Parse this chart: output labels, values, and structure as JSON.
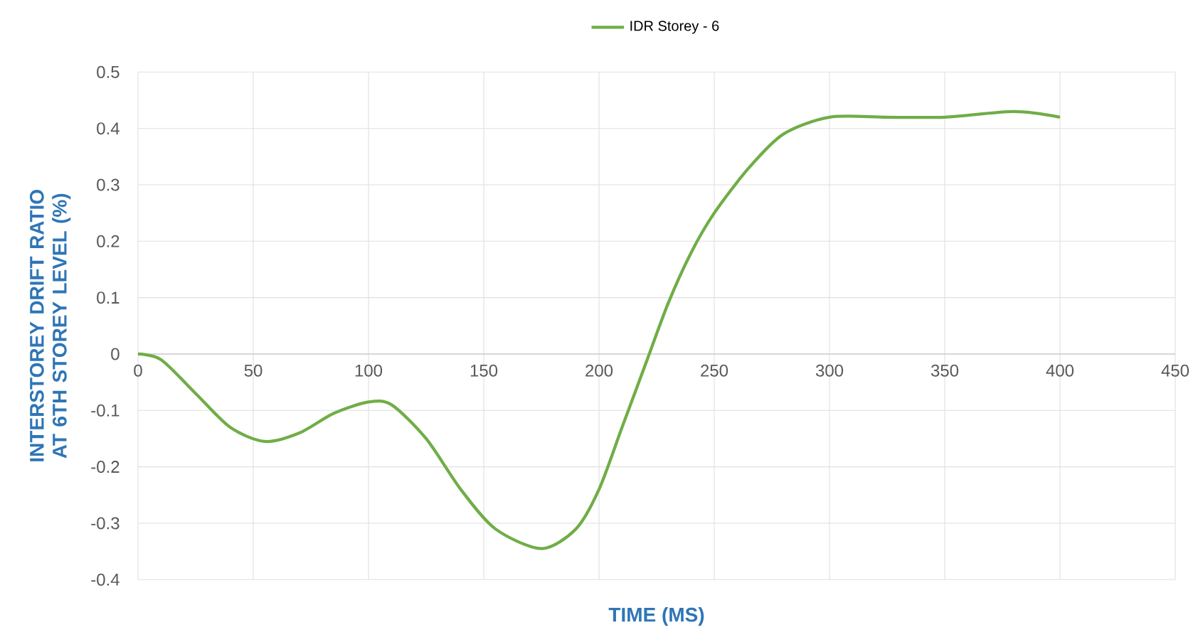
{
  "chart_data": {
    "type": "line",
    "xlabel": "TIME (MS)",
    "ylabel": "INTERSTOREY DRIFT RATIO AT 6TH STOREY LEVEL (%)",
    "x": [
      0,
      10,
      25,
      40,
      55,
      70,
      85,
      100,
      110,
      125,
      140,
      155,
      175,
      190,
      200,
      210,
      220,
      230,
      240,
      250,
      265,
      280,
      300,
      325,
      350,
      380,
      400
    ],
    "series": [
      {
        "name": "IDR Storey - 6",
        "color": "#70ad47",
        "values": [
          0,
          -0.01,
          -0.07,
          -0.13,
          -0.155,
          -0.14,
          -0.105,
          -0.085,
          -0.09,
          -0.15,
          -0.24,
          -0.31,
          -0.345,
          -0.31,
          -0.24,
          -0.13,
          -0.02,
          0.09,
          0.18,
          0.25,
          0.33,
          0.39,
          0.42,
          0.42,
          0.42,
          0.43,
          0.42
        ]
      }
    ],
    "xlim": [
      0,
      450
    ],
    "ylim": [
      -0.4,
      0.5
    ],
    "xticks": [
      0,
      50,
      100,
      150,
      200,
      250,
      300,
      350,
      400,
      450
    ],
    "yticks": [
      -0.4,
      -0.3,
      -0.2,
      -0.1,
      0,
      0.1,
      0.2,
      0.3,
      0.4,
      0.5
    ],
    "grid": true,
    "legend": "top",
    "marker": "none",
    "line_style": "solid"
  }
}
